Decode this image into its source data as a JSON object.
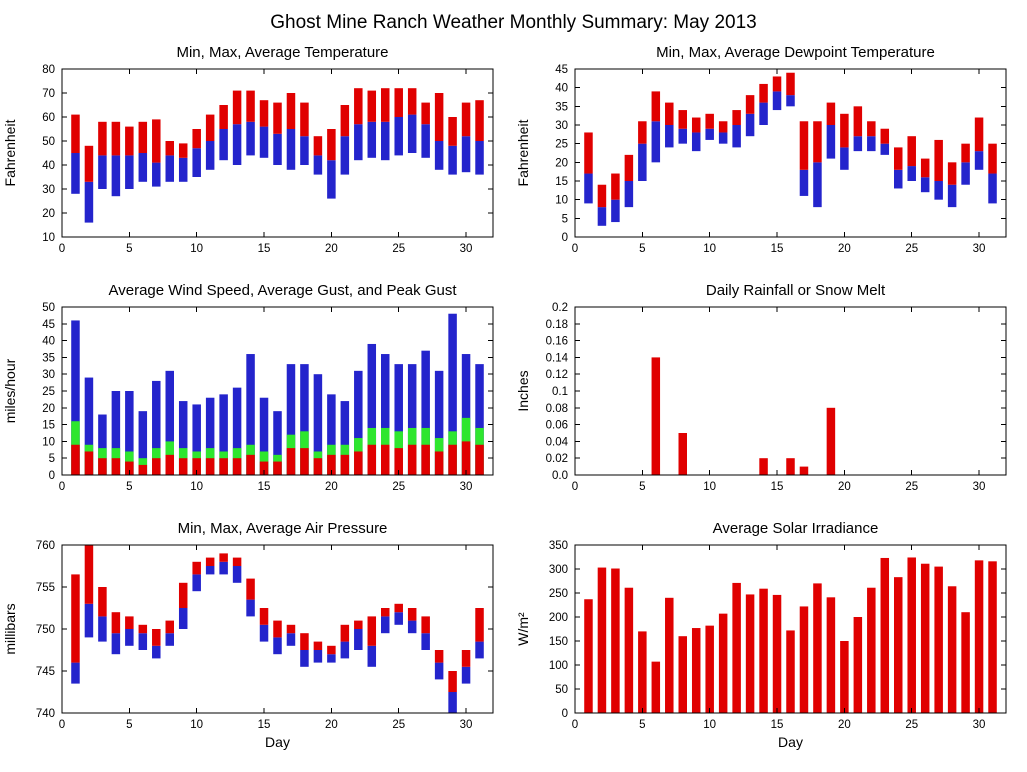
{
  "page_title": "Ghost Mine Ranch Weather Monthly Summary: May 2013",
  "colors": {
    "red": "#e00000",
    "blue": "#2424cc",
    "green": "#2ee62e"
  },
  "chart_data": [
    {
      "type": "range-bar",
      "title": "Min, Max, Average Temperature",
      "ylabel": "Fahrenheit",
      "xlabel": "",
      "ylim": [
        10,
        80
      ],
      "xlim": [
        0,
        32
      ],
      "yticks": {
        "values": [
          10,
          20,
          30,
          40,
          50,
          60,
          70,
          80
        ],
        "labels": [
          "10",
          "20",
          "30",
          "40",
          "50",
          "60",
          "70",
          "80"
        ]
      },
      "xticks": {
        "values": [
          0,
          5,
          10,
          15,
          20,
          25,
          30
        ],
        "labels": [
          "0",
          "5",
          "10",
          "15",
          "20",
          "25",
          "30"
        ]
      },
      "series": {
        "min": [
          28,
          16,
          30,
          27,
          30,
          33,
          31,
          33,
          33,
          35,
          38,
          42,
          40,
          44,
          43,
          40,
          38,
          40,
          36,
          26,
          36,
          42,
          43,
          42,
          44,
          45,
          43,
          38,
          36,
          37,
          36
        ],
        "avg": [
          45,
          33,
          44,
          44,
          44,
          45,
          41,
          44,
          43,
          47,
          50,
          55,
          57,
          58,
          56,
          53,
          55,
          52,
          44,
          42,
          52,
          57,
          58,
          58,
          60,
          61,
          57,
          50,
          48,
          52,
          50
        ],
        "max": [
          61,
          48,
          58,
          58,
          56,
          58,
          59,
          50,
          49,
          55,
          61,
          65,
          71,
          71,
          67,
          66,
          70,
          66,
          52,
          55,
          65,
          72,
          71,
          72,
          72,
          72,
          66,
          70,
          60,
          66,
          67
        ]
      }
    },
    {
      "type": "range-bar",
      "title": "Min, Max, Average Dewpoint Temperature",
      "ylabel": "Fahrenheit",
      "xlabel": "",
      "ylim": [
        0,
        45
      ],
      "xlim": [
        0,
        32
      ],
      "yticks": {
        "values": [
          0,
          5,
          10,
          15,
          20,
          25,
          30,
          35,
          40,
          45
        ],
        "labels": [
          "0",
          "5",
          "10",
          "15",
          "20",
          "25",
          "30",
          "35",
          "40",
          "45"
        ]
      },
      "xticks": {
        "values": [
          0,
          5,
          10,
          15,
          20,
          25,
          30
        ],
        "labels": [
          "0",
          "5",
          "10",
          "15",
          "20",
          "25",
          "30"
        ]
      },
      "series": {
        "min": [
          9,
          3,
          4,
          8,
          15,
          20,
          24,
          25,
          23,
          26,
          25,
          24,
          27,
          30,
          34,
          35,
          11,
          8,
          21,
          18,
          23,
          23,
          22,
          13,
          15,
          12,
          10,
          8,
          14,
          18,
          9
        ],
        "avg": [
          17,
          8,
          10,
          15,
          25,
          31,
          30,
          29,
          28,
          29,
          28,
          30,
          33,
          36,
          39,
          38,
          18,
          20,
          30,
          24,
          27,
          27,
          25,
          18,
          19,
          16,
          15,
          14,
          20,
          23,
          17
        ],
        "max": [
          28,
          14,
          17,
          22,
          31,
          39,
          36,
          34,
          32,
          33,
          31,
          34,
          38,
          41,
          43,
          44,
          31,
          31,
          36,
          33,
          35,
          31,
          29,
          24,
          27,
          21,
          26,
          20,
          25,
          32,
          25
        ]
      }
    },
    {
      "type": "stacked-bar",
      "title": "Average Wind Speed, Average Gust, and Peak Gust",
      "ylabel": "miles/hour",
      "xlabel": "",
      "ylim": [
        0,
        50
      ],
      "xlim": [
        0,
        32
      ],
      "yticks": {
        "values": [
          0,
          5,
          10,
          15,
          20,
          25,
          30,
          35,
          40,
          45,
          50
        ],
        "labels": [
          "0",
          "5",
          "10",
          "15",
          "20",
          "25",
          "30",
          "35",
          "40",
          "45",
          "50"
        ]
      },
      "xticks": {
        "values": [
          0,
          5,
          10,
          15,
          20,
          25,
          30
        ],
        "labels": [
          "0",
          "5",
          "10",
          "15",
          "20",
          "25",
          "30"
        ]
      },
      "series": {
        "avg_wind": [
          9,
          7,
          5,
          5,
          4,
          3,
          5,
          6,
          5,
          5,
          5,
          5,
          5,
          6,
          4,
          4,
          8,
          8,
          5,
          6,
          6,
          7,
          9,
          9,
          8,
          9,
          9,
          7,
          9,
          10,
          9
        ],
        "avg_gust": [
          16,
          9,
          8,
          8,
          7,
          5,
          8,
          10,
          8,
          7,
          8,
          7,
          8,
          9,
          7,
          6,
          12,
          13,
          7,
          9,
          9,
          11,
          14,
          14,
          13,
          14,
          14,
          11,
          13,
          17,
          14
        ],
        "peak_gust": [
          46,
          29,
          18,
          25,
          25,
          19,
          28,
          31,
          22,
          21,
          23,
          24,
          26,
          36,
          23,
          19,
          33,
          33,
          30,
          24,
          22,
          31,
          39,
          36,
          33,
          33,
          37,
          31,
          48,
          36,
          33
        ]
      }
    },
    {
      "type": "bar",
      "title": "Daily Rainfall or Snow Melt",
      "ylabel": "Inches",
      "xlabel": "",
      "ylim": [
        0,
        0.2
      ],
      "xlim": [
        0,
        32
      ],
      "yticks": {
        "values": [
          0,
          0.02,
          0.04,
          0.06,
          0.08,
          0.1,
          0.12,
          0.14,
          0.16,
          0.18,
          0.2
        ],
        "labels": [
          "0.0",
          "0.02",
          "0.04",
          "0.06",
          "0.08",
          "0.1",
          "0.12",
          "0.14",
          "0.16",
          "0.18",
          "0.2"
        ]
      },
      "xticks": {
        "values": [
          0,
          5,
          10,
          15,
          20,
          25,
          30
        ],
        "labels": [
          "0",
          "5",
          "10",
          "15",
          "20",
          "25",
          "30"
        ]
      },
      "series": {
        "values": [
          0,
          0,
          0,
          0,
          0,
          0.14,
          0,
          0.05,
          0,
          0,
          0,
          0,
          0,
          0.02,
          0,
          0.02,
          0.01,
          0,
          0.08,
          0,
          0,
          0,
          0,
          0,
          0,
          0,
          0,
          0,
          0,
          0,
          0
        ]
      }
    },
    {
      "type": "range-bar",
      "title": "Min, Max, Average Air Pressure",
      "ylabel": "millibars",
      "xlabel": "Day",
      "ylim": [
        740,
        760
      ],
      "xlim": [
        0,
        32
      ],
      "yticks": {
        "values": [
          740,
          745,
          750,
          755,
          760
        ],
        "labels": [
          "740",
          "745",
          "750",
          "755",
          "760"
        ]
      },
      "xticks": {
        "values": [
          0,
          5,
          10,
          15,
          20,
          25,
          30
        ],
        "labels": [
          "0",
          "5",
          "10",
          "15",
          "20",
          "25",
          "30"
        ]
      },
      "series": {
        "min": [
          743.5,
          749,
          748.5,
          747,
          748,
          747.5,
          746.5,
          748,
          750,
          754.5,
          756.5,
          756.5,
          755.5,
          751.5,
          748.5,
          747,
          748,
          745.5,
          746,
          746,
          746.5,
          747.5,
          745.5,
          749.5,
          750.5,
          749.5,
          747.5,
          744,
          740,
          743.5,
          746.5
        ],
        "avg": [
          746,
          753,
          751.5,
          749.5,
          750,
          749.5,
          748,
          749.5,
          752.5,
          756.5,
          757.5,
          758,
          757.5,
          753.5,
          750.5,
          749,
          749.5,
          747.5,
          747.5,
          747,
          748.5,
          750,
          748,
          751.5,
          752,
          751,
          749.5,
          746,
          742.5,
          745.5,
          748.5
        ],
        "max": [
          756.5,
          760,
          755,
          752,
          751.5,
          750.5,
          750,
          751,
          755.5,
          758,
          758.5,
          759,
          758.5,
          756,
          752.5,
          751,
          750.5,
          749.5,
          748.5,
          748,
          750.5,
          751,
          751.5,
          752.5,
          753,
          752.5,
          751.5,
          747.5,
          745,
          747.5,
          752.5
        ]
      }
    },
    {
      "type": "bar",
      "title": "Average Solar Irradiance",
      "ylabel": "W/m²",
      "xlabel": "Day",
      "ylim": [
        0,
        350
      ],
      "xlim": [
        0,
        32
      ],
      "yticks": {
        "values": [
          0,
          50,
          100,
          150,
          200,
          250,
          300,
          350
        ],
        "labels": [
          "0",
          "50",
          "100",
          "150",
          "200",
          "250",
          "300",
          "350"
        ]
      },
      "xticks": {
        "values": [
          0,
          5,
          10,
          15,
          20,
          25,
          30
        ],
        "labels": [
          "0",
          "5",
          "10",
          "15",
          "20",
          "25",
          "30"
        ]
      },
      "series": {
        "values": [
          237,
          303,
          301,
          261,
          170,
          107,
          240,
          160,
          177,
          182,
          207,
          271,
          247,
          259,
          246,
          172,
          222,
          270,
          241,
          150,
          200,
          261,
          323,
          283,
          324,
          311,
          305,
          264,
          210,
          318,
          316
        ]
      }
    }
  ]
}
